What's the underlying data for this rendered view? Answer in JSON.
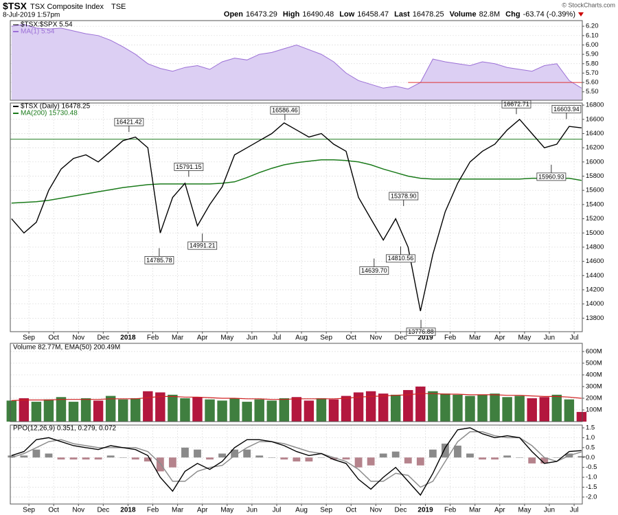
{
  "header": {
    "symbol": "$TSX",
    "name": "TSX Composite Index",
    "exchange": "TSE",
    "date": "8-Jul-2019 1:57pm",
    "quote": [
      {
        "label": "Open",
        "value": "16473.29"
      },
      {
        "label": "High",
        "value": "16490.48"
      },
      {
        "label": "Low",
        "value": "16458.47"
      },
      {
        "label": "Last",
        "value": "16478.25"
      },
      {
        "label": "Volume",
        "value": "82.8M"
      },
      {
        "label": "Chg",
        "value": "-63.74 (-0.39%)"
      }
    ],
    "credit": "© StockCharts.com"
  },
  "chart_data": [
    {
      "type": "area",
      "series": [
        {
          "name": "$TSX:$SPX 5.54",
          "color": "#9b6fd6",
          "fill": "#dccff3",
          "values": [
            6.2,
            6.22,
            6.18,
            6.17,
            6.18,
            6.15,
            6.12,
            6.1,
            6.05,
            5.98,
            5.9,
            5.8,
            5.75,
            5.72,
            5.76,
            5.78,
            5.74,
            5.82,
            5.86,
            5.84,
            5.9,
            5.92,
            5.96,
            6.0,
            5.95,
            5.9,
            5.82,
            5.7,
            5.62,
            5.58,
            5.54,
            5.56,
            5.53,
            5.6,
            5.85,
            5.82,
            5.8,
            5.78,
            5.82,
            5.8,
            5.76,
            5.74,
            5.72,
            5.78,
            5.8,
            5.62,
            5.54
          ]
        }
      ],
      "ma_label": "MA(1) 5.54",
      "x": [
        -0.7,
        -0.2,
        0.3,
        0.8,
        1.3,
        1.8,
        2.3,
        2.8,
        3.3,
        3.8,
        4.3,
        4.8,
        5.3,
        5.8,
        6.3,
        6.8,
        7.3,
        7.8,
        8.3,
        8.8,
        9.3,
        9.8,
        10.3,
        10.8,
        11.3,
        11.8,
        12.3,
        12.8,
        13.3,
        13.8,
        14.3,
        14.8,
        15.3,
        15.8,
        16.3,
        16.8,
        17.3,
        17.8,
        18.3,
        18.8,
        19.3,
        19.8,
        20.3,
        20.8,
        21.3,
        21.8,
        22.3
      ],
      "xlim": [
        -0.75,
        22.33
      ],
      "ylim": [
        5.41,
        6.26
      ],
      "yticks": [
        {
          "value": 5.5,
          "label": "5.50"
        },
        {
          "value": 5.6,
          "label": "5.60"
        },
        {
          "value": 5.7,
          "label": "5.70"
        },
        {
          "value": 5.8,
          "label": "5.80"
        },
        {
          "value": 5.9,
          "label": "5.90"
        },
        {
          "value": 6.0,
          "label": "6.00"
        },
        {
          "value": 6.1,
          "label": "6.10"
        },
        {
          "value": 6.2,
          "label": "6.20"
        }
      ],
      "hline": {
        "value": 5.6,
        "from": 15.3,
        "color": "#e03030"
      },
      "grid": true
    },
    {
      "type": "line",
      "series": [
        {
          "name": "$TSX (Daily) 16478.25",
          "color": "#000000",
          "values": [
            15200,
            15000,
            15150,
            15600,
            15900,
            16050,
            16100,
            16000,
            16150,
            16300,
            16350,
            16200,
            15000,
            15500,
            15700,
            15100,
            15400,
            15650,
            16100,
            16200,
            16300,
            16400,
            16550,
            16450,
            16350,
            16400,
            16250,
            16150,
            15500,
            15200,
            14900,
            15200,
            14800,
            13900,
            14700,
            15300,
            15700,
            16000,
            16150,
            16250,
            16450,
            16600,
            16400,
            16200,
            16250,
            16500,
            16480
          ]
        },
        {
          "name": "MA(200) 15730.48",
          "color": "#1a7a1a",
          "values": [
            15420,
            15430,
            15440,
            15460,
            15490,
            15520,
            15550,
            15580,
            15610,
            15640,
            15660,
            15680,
            15690,
            15690,
            15690,
            15690,
            15690,
            15700,
            15720,
            15780,
            15850,
            15910,
            15960,
            15990,
            16010,
            16030,
            16030,
            16020,
            16000,
            15960,
            15900,
            15850,
            15800,
            15770,
            15760,
            15760,
            15760,
            15760,
            15760,
            15760,
            15760,
            15760,
            15770,
            15770,
            15770,
            15770,
            15740
          ]
        }
      ],
      "x": [
        -0.7,
        -0.2,
        0.3,
        0.8,
        1.3,
        1.8,
        2.3,
        2.8,
        3.3,
        3.8,
        4.3,
        4.8,
        5.3,
        5.8,
        6.3,
        6.8,
        7.3,
        7.8,
        8.3,
        8.8,
        9.3,
        9.8,
        10.3,
        10.8,
        11.3,
        11.8,
        12.3,
        12.8,
        13.3,
        13.8,
        14.3,
        14.8,
        15.3,
        15.8,
        16.3,
        16.8,
        17.3,
        17.8,
        18.3,
        18.8,
        19.3,
        19.8,
        20.3,
        20.8,
        21.3,
        21.8,
        22.3
      ],
      "xlim": [
        -0.75,
        22.33
      ],
      "ylim": [
        13610,
        16830
      ],
      "yticks": [
        13800,
        14000,
        14200,
        14400,
        14600,
        14800,
        15000,
        15200,
        15400,
        15600,
        15800,
        16000,
        16200,
        16400,
        16600,
        16800
      ],
      "xticks": [
        {
          "value": 0,
          "label": "Sep"
        },
        {
          "value": 1,
          "label": "Oct"
        },
        {
          "value": 2,
          "label": "Nov"
        },
        {
          "value": 3,
          "label": "Dec"
        },
        {
          "value": 4,
          "label": "2018"
        },
        {
          "value": 5,
          "label": "Feb"
        },
        {
          "value": 6,
          "label": "Mar"
        },
        {
          "value": 7,
          "label": "Apr"
        },
        {
          "value": 8,
          "label": "May"
        },
        {
          "value": 9,
          "label": "Jun"
        },
        {
          "value": 10,
          "label": "Jul"
        },
        {
          "value": 11,
          "label": "Aug"
        },
        {
          "value": 12,
          "label": "Sep"
        },
        {
          "value": 13,
          "label": "Oct"
        },
        {
          "value": 14,
          "label": "Nov"
        },
        {
          "value": 15,
          "label": "Dec"
        },
        {
          "value": 16,
          "label": "2019"
        },
        {
          "value": 17,
          "label": "Feb"
        },
        {
          "value": 18,
          "label": "Mar"
        },
        {
          "value": 19,
          "label": "Apr"
        },
        {
          "value": 20,
          "label": "May"
        },
        {
          "value": 21,
          "label": "Jun"
        },
        {
          "value": 22,
          "label": "Jul"
        }
      ],
      "annotations": [
        {
          "x": 4.04,
          "value": 16421.42,
          "label": "16421.42"
        },
        {
          "x": 5.26,
          "value": 14785.78,
          "label": "14785.78"
        },
        {
          "x": 6.45,
          "value": 15791.15,
          "label": "15791.15"
        },
        {
          "x": 7.0,
          "value": 14991.21,
          "label": "14991.21"
        },
        {
          "x": 10.33,
          "value": 16586.46,
          "label": "16586.46"
        },
        {
          "x": 13.93,
          "value": 14639.7,
          "label": "14639.70"
        },
        {
          "x": 15.12,
          "value": 15378.9,
          "label": "15378.90"
        },
        {
          "x": 15.0,
          "value": 14810.56,
          "label": "14810.56"
        },
        {
          "x": 15.82,
          "value": 13776.88,
          "label": "13776.88"
        },
        {
          "x": 19.67,
          "value": 16672.71,
          "label": "16672.71"
        },
        {
          "x": 21.08,
          "value": 15960.93,
          "label": "15960.93"
        },
        {
          "x": 21.69,
          "value": 16603.94,
          "label": "16603.94"
        }
      ],
      "hline": {
        "value": 16320,
        "from": -0.75,
        "color": "#1a7a1a"
      },
      "grid": true
    },
    {
      "type": "bar",
      "legend": "Volume 82.77M, EMA(50) 200.49M",
      "values": [
        180000000,
        200000000,
        170000000,
        190000000,
        210000000,
        170000000,
        200000000,
        180000000,
        220000000,
        190000000,
        200000000,
        260000000,
        250000000,
        230000000,
        200000000,
        210000000,
        190000000,
        180000000,
        200000000,
        170000000,
        190000000,
        180000000,
        200000000,
        210000000,
        180000000,
        200000000,
        190000000,
        220000000,
        250000000,
        260000000,
        240000000,
        230000000,
        270000000,
        300000000,
        260000000,
        240000000,
        230000000,
        220000000,
        230000000,
        240000000,
        210000000,
        220000000,
        200000000,
        210000000,
        230000000,
        190000000,
        82770000
      ],
      "up_color": "#3f7f3f",
      "down_color": "#b3173e",
      "ema": {
        "color": "#d02020",
        "values": [
          180000000,
          185000000,
          185000000,
          185000000,
          190000000,
          190000000,
          190000000,
          190000000,
          195000000,
          195000000,
          195000000,
          205000000,
          215000000,
          215000000,
          210000000,
          210000000,
          205000000,
          200000000,
          200000000,
          195000000,
          195000000,
          190000000,
          190000000,
          195000000,
          195000000,
          195000000,
          195000000,
          200000000,
          210000000,
          215000000,
          220000000,
          225000000,
          230000000,
          240000000,
          240000000,
          235000000,
          235000000,
          230000000,
          230000000,
          230000000,
          225000000,
          225000000,
          220000000,
          215000000,
          215000000,
          210000000,
          200000000
        ]
      },
      "x": [
        -0.7,
        -0.2,
        0.3,
        0.8,
        1.3,
        1.8,
        2.3,
        2.8,
        3.3,
        3.8,
        4.3,
        4.8,
        5.3,
        5.8,
        6.3,
        6.8,
        7.3,
        7.8,
        8.3,
        8.8,
        9.3,
        9.8,
        10.3,
        10.8,
        11.3,
        11.8,
        12.3,
        12.8,
        13.3,
        13.8,
        14.3,
        14.8,
        15.3,
        15.8,
        16.3,
        16.8,
        17.3,
        17.8,
        18.3,
        18.8,
        19.3,
        19.8,
        20.3,
        20.8,
        21.3,
        21.8,
        22.3
      ],
      "xlim": [
        -0.75,
        22.33
      ],
      "ylim": [
        0,
        670000000
      ],
      "yticks": [
        {
          "value": 100000000,
          "label": "100M"
        },
        {
          "value": 200000000,
          "label": "200M"
        },
        {
          "value": 300000000,
          "label": "300M"
        },
        {
          "value": 400000000,
          "label": "400M"
        },
        {
          "value": 500000000,
          "label": "500M"
        },
        {
          "value": 600000000,
          "label": "600M"
        }
      ],
      "grid": true
    },
    {
      "type": "line",
      "legend": "PPO(12,26,9) 0.351, 0.279, 0.072",
      "series": [
        {
          "color": "#000000",
          "values": [
            0.1,
            0.3,
            0.9,
            1.0,
            0.8,
            0.6,
            0.5,
            0.4,
            0.6,
            0.5,
            0.4,
            0.1,
            -1.0,
            -1.7,
            -0.7,
            -0.3,
            -0.6,
            -0.2,
            0.5,
            0.9,
            0.9,
            0.8,
            0.6,
            0.3,
            0.1,
            0.2,
            -0.1,
            -0.3,
            -1.1,
            -1.6,
            -1.0,
            -0.5,
            -1.2,
            -1.9,
            -0.8,
            0.5,
            1.4,
            1.5,
            1.2,
            1.0,
            1.1,
            1.0,
            0.3,
            -0.3,
            -0.2,
            0.3,
            0.35
          ]
        },
        {
          "color": "#8c8c8c",
          "values": [
            0.0,
            0.2,
            0.5,
            0.8,
            0.9,
            0.7,
            0.6,
            0.5,
            0.5,
            0.5,
            0.5,
            0.3,
            -0.3,
            -1.2,
            -1.2,
            -0.7,
            -0.5,
            -0.4,
            0.1,
            0.5,
            0.8,
            0.8,
            0.7,
            0.5,
            0.3,
            0.2,
            0.0,
            -0.2,
            -0.6,
            -1.2,
            -1.2,
            -0.8,
            -0.9,
            -1.5,
            -1.2,
            -0.2,
            0.8,
            1.3,
            1.3,
            1.1,
            1.0,
            1.0,
            0.6,
            0.0,
            -0.2,
            0.1,
            0.28
          ]
        }
      ],
      "histogram": {
        "color": "#8a8a8a",
        "negative_color": "#b5838c",
        "values": [
          0.1,
          0.1,
          0.4,
          0.2,
          -0.1,
          -0.1,
          -0.1,
          -0.1,
          0.1,
          0.0,
          -0.1,
          -0.2,
          -0.7,
          -0.5,
          0.5,
          0.4,
          -0.1,
          0.2,
          0.4,
          0.4,
          0.1,
          0.0,
          -0.1,
          -0.2,
          -0.2,
          0.0,
          -0.1,
          -0.1,
          -0.5,
          -0.4,
          0.2,
          0.3,
          -0.3,
          -0.4,
          0.4,
          0.7,
          0.6,
          0.2,
          -0.1,
          -0.1,
          0.1,
          0.0,
          -0.3,
          -0.3,
          0.0,
          0.2,
          0.07
        ]
      },
      "x": [
        -0.7,
        -0.2,
        0.3,
        0.8,
        1.3,
        1.8,
        2.3,
        2.8,
        3.3,
        3.8,
        4.3,
        4.8,
        5.3,
        5.8,
        6.3,
        6.8,
        7.3,
        7.8,
        8.3,
        8.8,
        9.3,
        9.8,
        10.3,
        10.8,
        11.3,
        11.8,
        12.3,
        12.8,
        13.3,
        13.8,
        14.3,
        14.8,
        15.3,
        15.8,
        16.3,
        16.8,
        17.3,
        17.8,
        18.3,
        18.8,
        19.3,
        19.8,
        20.3,
        20.8,
        21.3,
        21.8,
        22.3
      ],
      "xlim": [
        -0.75,
        22.33
      ],
      "ylim": [
        -2.35,
        1.64
      ],
      "yticks": [
        {
          "value": -2,
          "label": "-2.0"
        },
        -1.5,
        {
          "value": -1,
          "label": "-1.0"
        },
        -0.5,
        {
          "value": 0,
          "label": "0.0"
        },
        0.5,
        {
          "value": 1,
          "label": "1.0"
        },
        1.5
      ],
      "xticks": [
        {
          "value": 0,
          "label": "Sep"
        },
        {
          "value": 1,
          "label": "Oct"
        },
        {
          "value": 2,
          "label": "Nov"
        },
        {
          "value": 3,
          "label": "Dec"
        },
        {
          "value": 4,
          "label": "2018"
        },
        {
          "value": 5,
          "label": "Feb"
        },
        {
          "value": 6,
          "label": "Mar"
        },
        {
          "value": 7,
          "label": "Apr"
        },
        {
          "value": 8,
          "label": "May"
        },
        {
          "value": 9,
          "label": "Jun"
        },
        {
          "value": 10,
          "label": "Jul"
        },
        {
          "value": 11,
          "label": "Aug"
        },
        {
          "value": 12,
          "label": "Sep"
        },
        {
          "value": 13,
          "label": "Oct"
        },
        {
          "value": 14,
          "label": "Nov"
        },
        {
          "value": 15,
          "label": "Dec"
        },
        {
          "value": 16,
          "label": "2019"
        },
        {
          "value": 17,
          "label": "Feb"
        },
        {
          "value": 18,
          "label": "Mar"
        },
        {
          "value": 19,
          "label": "Apr"
        },
        {
          "value": 20,
          "label": "May"
        },
        {
          "value": 21,
          "label": "Jun"
        },
        {
          "value": 22,
          "label": "Jul"
        }
      ],
      "grid": true
    }
  ]
}
